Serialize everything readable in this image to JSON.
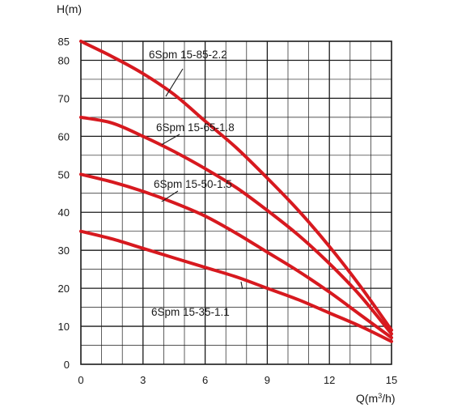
{
  "chart_data": {
    "type": "line",
    "title": "",
    "ylabel": "H(m)",
    "xlabel_prefix": "Q(m",
    "xlabel_sup": "3",
    "xlabel_suffix": "/h)",
    "xlim": [
      0,
      15
    ],
    "ylim": [
      0,
      85
    ],
    "x_ticks": [
      0,
      3,
      6,
      9,
      12,
      15
    ],
    "y_ticks": [
      0,
      10,
      20,
      30,
      40,
      50,
      60,
      70,
      80,
      85
    ],
    "grid": true,
    "line_color": "#d7191f",
    "series": [
      {
        "name": "6Spm 15-85-2.2",
        "points": [
          [
            0,
            85
          ],
          [
            1.5,
            81
          ],
          [
            3,
            76.5
          ],
          [
            4.5,
            71
          ],
          [
            6,
            64
          ],
          [
            7.5,
            57
          ],
          [
            9,
            49
          ],
          [
            10.5,
            40.5
          ],
          [
            12,
            31
          ],
          [
            13.5,
            20.5
          ],
          [
            15,
            9
          ]
        ]
      },
      {
        "name": "6Spm 15-65-1.8",
        "points": [
          [
            0,
            65
          ],
          [
            1.5,
            63.5
          ],
          [
            3,
            60
          ],
          [
            4.5,
            56
          ],
          [
            6,
            51.5
          ],
          [
            7.5,
            46.5
          ],
          [
            9,
            40.5
          ],
          [
            10.5,
            34
          ],
          [
            12,
            26.5
          ],
          [
            13.5,
            18
          ],
          [
            15,
            8
          ]
        ]
      },
      {
        "name": "6Spm 15-50-1.5",
        "points": [
          [
            0,
            50
          ],
          [
            1.5,
            48
          ],
          [
            3,
            45.5
          ],
          [
            4.5,
            42.5
          ],
          [
            6,
            39
          ],
          [
            7.5,
            34.5
          ],
          [
            9,
            29.5
          ],
          [
            10.5,
            24.5
          ],
          [
            12,
            19
          ],
          [
            13.5,
            13
          ],
          [
            15,
            7
          ]
        ]
      },
      {
        "name": "6Spm 15-35-1.1",
        "points": [
          [
            0,
            35
          ],
          [
            1.5,
            33
          ],
          [
            3,
            30.5
          ],
          [
            4.5,
            28
          ],
          [
            6,
            25.5
          ],
          [
            7.5,
            23
          ],
          [
            9,
            20
          ],
          [
            10.5,
            17
          ],
          [
            12,
            13.5
          ],
          [
            13.5,
            10
          ],
          [
            15,
            6
          ]
        ]
      }
    ],
    "labels": [
      {
        "series": 0,
        "text": "6Spm 15-85-2.2",
        "anchor_x": 11.2,
        "anchor_y": 78.5,
        "leader_to": [
          4.1,
          70.5
        ]
      },
      {
        "series": 1,
        "text": "6Spm 15-65-1.8",
        "anchor_x": 11.4,
        "anchor_y": 62.6,
        "leader_to": [
          3.9,
          57.8
        ]
      },
      {
        "series": 2,
        "text": "6Spm 15-50-1.5",
        "anchor_x": 11.4,
        "anchor_y": 47.2,
        "leader_to": [
          3.9,
          42.8
        ]
      },
      {
        "series": 3,
        "text": "6Spm 15-35-1.1",
        "anchor_x": 11.4,
        "anchor_y": 13.0,
        "leader_to": [
          7.8,
          19.9
        ]
      }
    ]
  }
}
